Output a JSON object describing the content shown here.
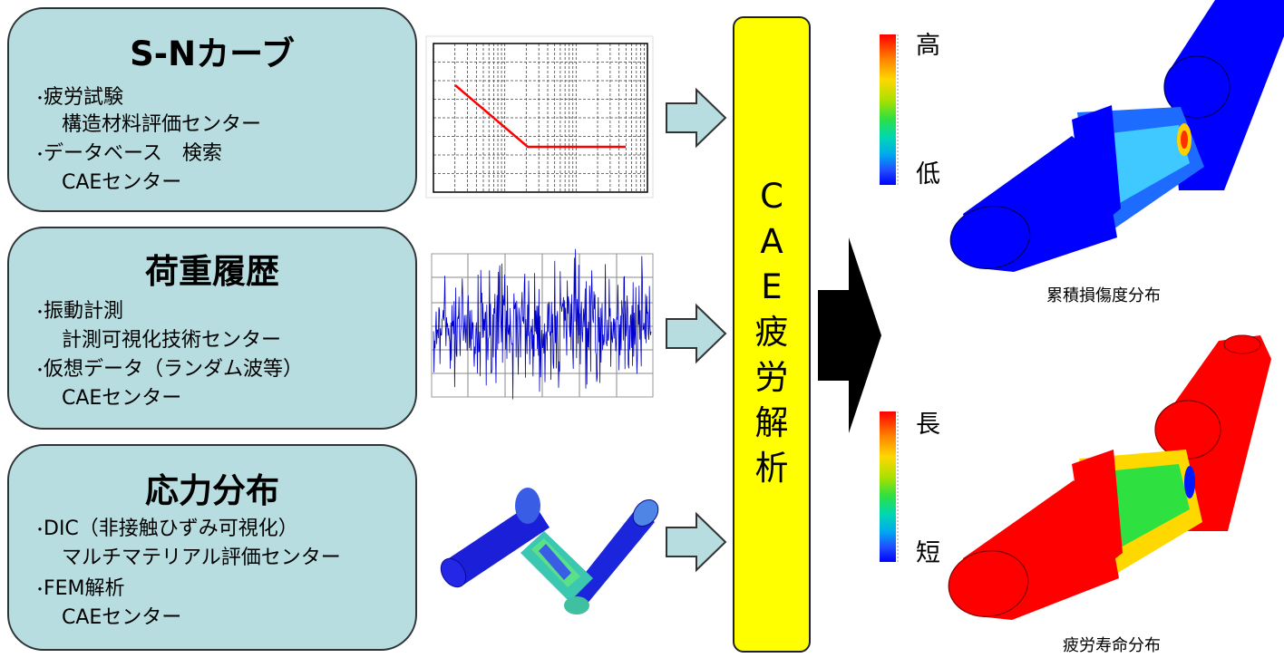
{
  "panels": {
    "sn": {
      "title": "S-Nカーブ",
      "lines": [
        "疲労試験",
        "構造材料評価センター",
        "データベース　検索",
        "CAEセンター"
      ]
    },
    "load": {
      "title": "荷重履歴",
      "lines": [
        "振動計測",
        "計測可視化技術センター",
        "仮想データ（ランダム波等）",
        "CAEセンター"
      ]
    },
    "stress": {
      "title": "応力分布",
      "lines": [
        "DIC（非接触ひずみ可視化）",
        "マルチマテリアル評価センター",
        "FEM解析",
        "CAEセンター"
      ]
    }
  },
  "cae": {
    "chars": [
      "C",
      "A",
      "E",
      "疲",
      "労",
      "解",
      "析"
    ]
  },
  "results": {
    "damage": {
      "caption": "累積損傷度分布",
      "high_label": "高",
      "low_label": "低"
    },
    "life": {
      "caption": "疲労寿命分布",
      "high_label": "長",
      "low_label": "短"
    }
  },
  "colors": {
    "panel_fill": "#b7dde0",
    "cae_fill": "#ffff00",
    "arrow_fill": "#b7dde0",
    "big_arrow": "#000000",
    "sn_curve": "#ff0000",
    "signal": "#0000cc",
    "model_blue": "#0000ff",
    "model_red": "#ff0000"
  },
  "icons": {
    "input_arrow": "right-block-arrow-icon",
    "output_arrow": "black-chevron-arrow-icon"
  }
}
